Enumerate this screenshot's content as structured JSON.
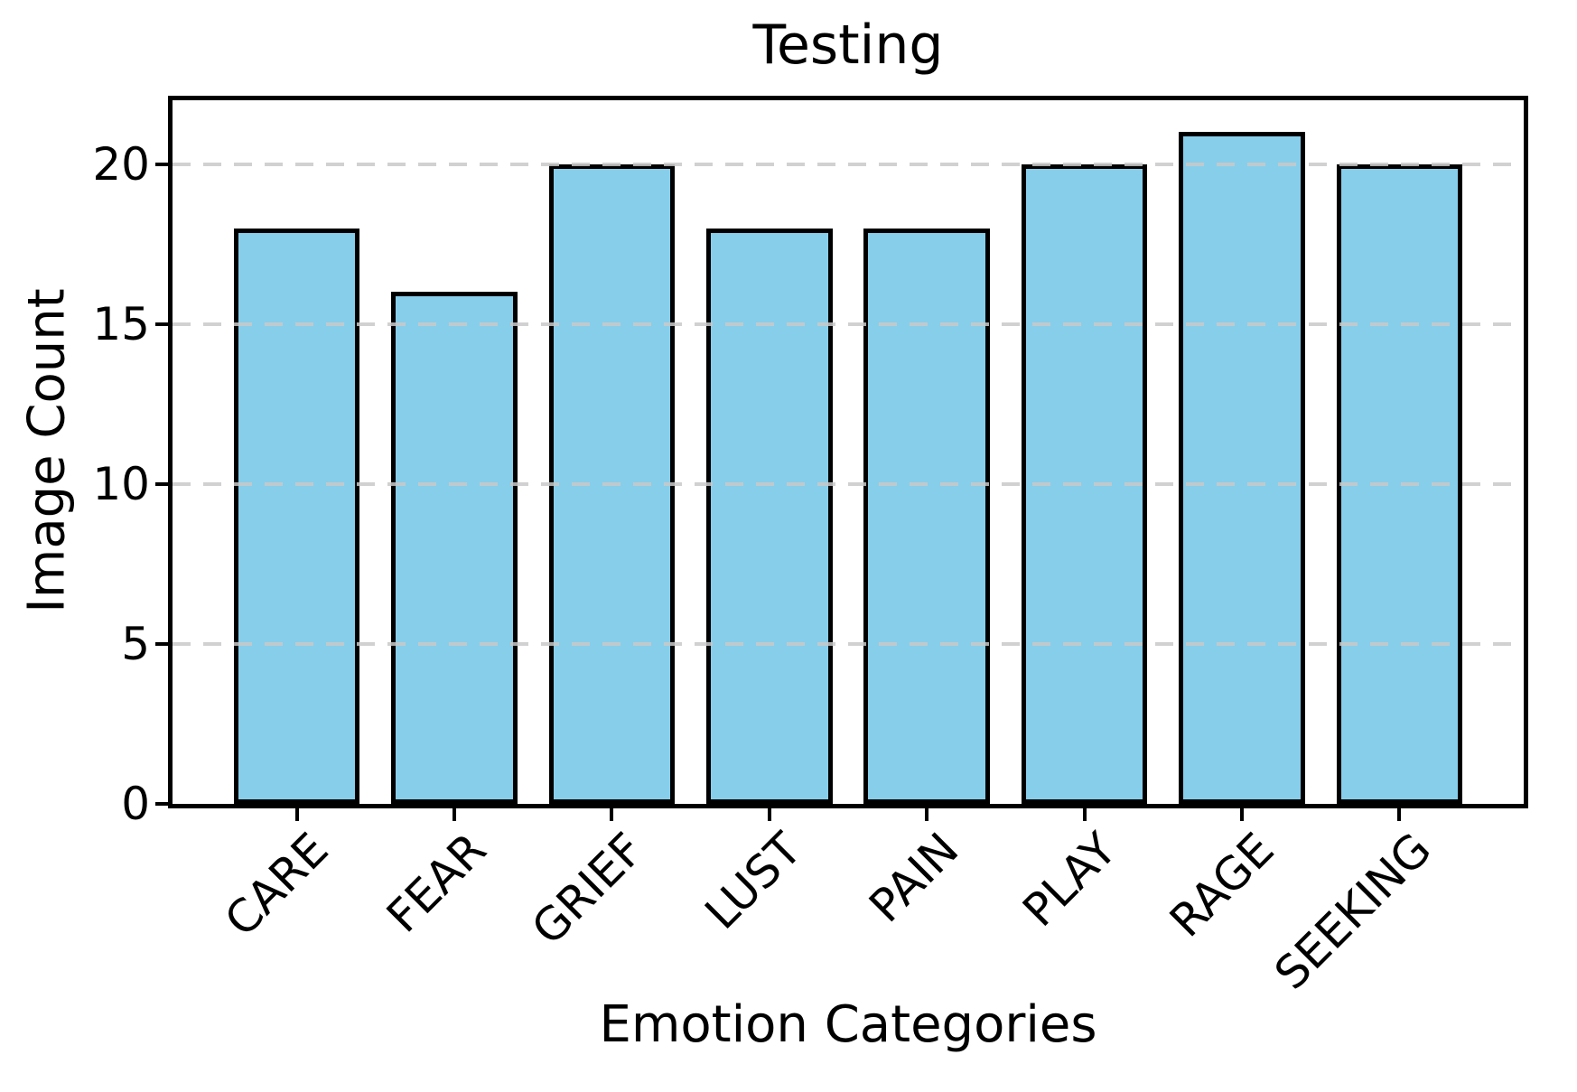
{
  "chart_data": {
    "type": "bar",
    "title": "Testing",
    "xlabel": "Emotion Categories",
    "ylabel": "Image Count",
    "categories": [
      "CARE",
      "FEAR",
      "GRIEF",
      "LUST",
      "PAIN",
      "PLAY",
      "RAGE",
      "SEEKING"
    ],
    "values": [
      18,
      16,
      20,
      18,
      18,
      20,
      21,
      20
    ],
    "ylim": [
      0,
      22
    ],
    "yticks": [
      0,
      5,
      10,
      15,
      20
    ],
    "x_tick_rotation": 45,
    "grid": "horizontal dashed, drawn above bars",
    "legend": "none",
    "bar_color": "#87CEEB",
    "bar_edge_color": "#000000",
    "grid_color": "#c9c9c9",
    "background_color": "#ffffff"
  }
}
